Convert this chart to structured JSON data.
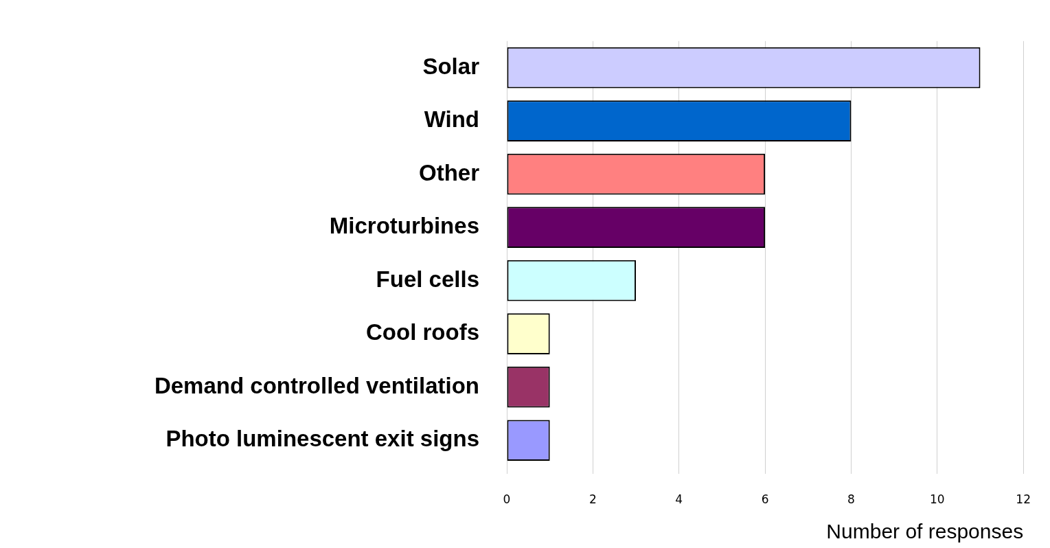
{
  "chart_data": {
    "type": "bar",
    "orientation": "horizontal",
    "xlabel": "Number of responses",
    "categories": [
      "Solar",
      "Wind",
      "Other",
      "Microturbines",
      "Fuel cells",
      "Cool roofs",
      "Demand controlled ventilation",
      "Photo luminescent exit signs"
    ],
    "values": [
      11,
      8,
      6,
      6,
      3,
      1,
      1,
      1
    ],
    "colors": [
      "#ccccff",
      "#0066cc",
      "#ff8080",
      "#660066",
      "#ccffff",
      "#ffffcc",
      "#993366",
      "#9999ff"
    ],
    "xlim": [
      0,
      12
    ],
    "xticks": [
      0,
      2,
      4,
      6,
      8,
      10,
      12
    ],
    "grid": "x",
    "legend": false
  }
}
